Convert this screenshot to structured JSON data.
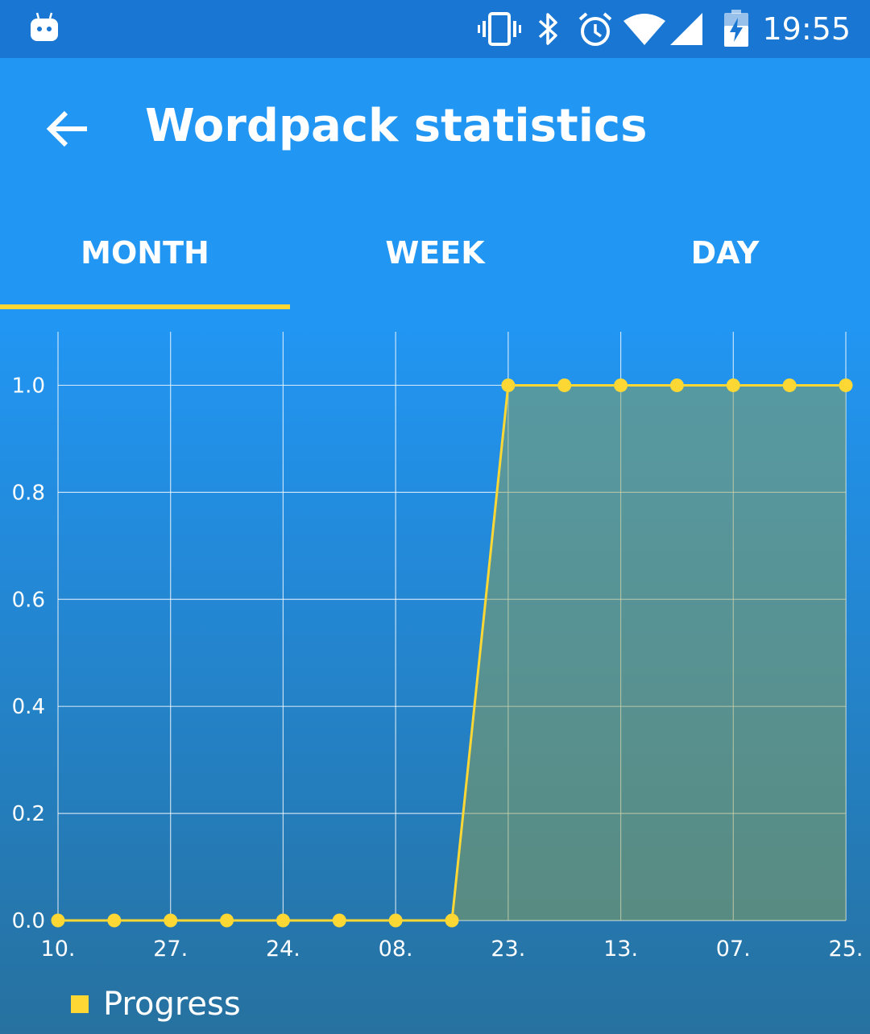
{
  "status_bar": {
    "time": "19:55",
    "icons": [
      "android-robot-icon",
      "vibrate-icon",
      "bluetooth-icon",
      "alarm-icon",
      "wifi-icon",
      "signal-icon",
      "battery-charging-icon"
    ]
  },
  "app_bar": {
    "back_icon": "arrow-back-icon",
    "title": "Wordpack statistics"
  },
  "tabs": [
    {
      "label": "MONTH",
      "selected": true
    },
    {
      "label": "WEEK",
      "selected": false
    },
    {
      "label": "DAY",
      "selected": false
    }
  ],
  "colors": {
    "primary": "#2196F3",
    "status_bar": "#1976D2",
    "accent": "#FDD835"
  },
  "chart_data": {
    "type": "area",
    "x_tick_labels": [
      "10.",
      "27.",
      "24.",
      "08.",
      "23.",
      "13.",
      "07.",
      "25."
    ],
    "y_tick_labels": [
      "0.0",
      "0.2",
      "0.4",
      "0.6",
      "0.8",
      "1.0"
    ],
    "ylim": [
      0,
      1.1
    ],
    "grid": true,
    "series": [
      {
        "name": "Progress",
        "values": [
          0,
          0,
          0,
          0,
          0,
          0,
          0,
          0,
          1,
          1,
          1,
          1,
          1,
          1,
          1
        ]
      }
    ],
    "legend": {
      "label": "Progress",
      "placement": "bottom-left"
    }
  }
}
